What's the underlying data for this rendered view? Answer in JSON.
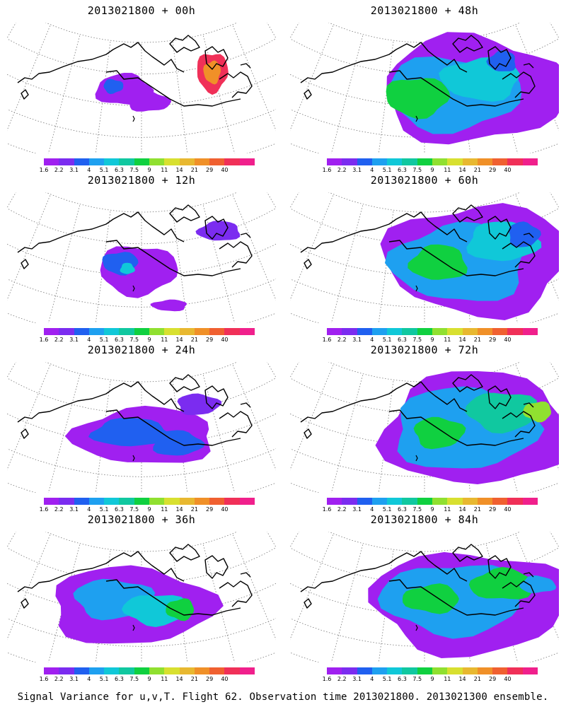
{
  "panels": [
    {
      "title": "2013021800 + 00h",
      "lead": "00h"
    },
    {
      "title": "2013021800 + 48h",
      "lead": "48h"
    },
    {
      "title": "2013021800 + 12h",
      "lead": "12h"
    },
    {
      "title": "2013021800 + 60h",
      "lead": "60h"
    },
    {
      "title": "2013021800 + 24h",
      "lead": "24h"
    },
    {
      "title": "2013021800 + 72h",
      "lead": "72h"
    },
    {
      "title": "2013021800 + 36h",
      "lead": "36h"
    },
    {
      "title": "2013021800 + 84h",
      "lead": "84h"
    }
  ],
  "colorbar": {
    "labels": [
      "1.6",
      "2.2",
      "3.1",
      "4",
      "5.1",
      "6.3",
      "7.5",
      "9",
      "11",
      "14",
      "21",
      "29",
      "40"
    ],
    "colors": [
      "#a020f0",
      "#7b2cf0",
      "#2060f0",
      "#1ea0f0",
      "#10c8d8",
      "#10c8a0",
      "#10d040",
      "#90e030",
      "#d8e030",
      "#e8b830",
      "#f09028",
      "#f06030",
      "#f03058",
      "#f0208c"
    ]
  },
  "footer": "Signal Variance for u,v,T. Flight 62. Observation time 2013021800. 2013021300 ensemble."
}
